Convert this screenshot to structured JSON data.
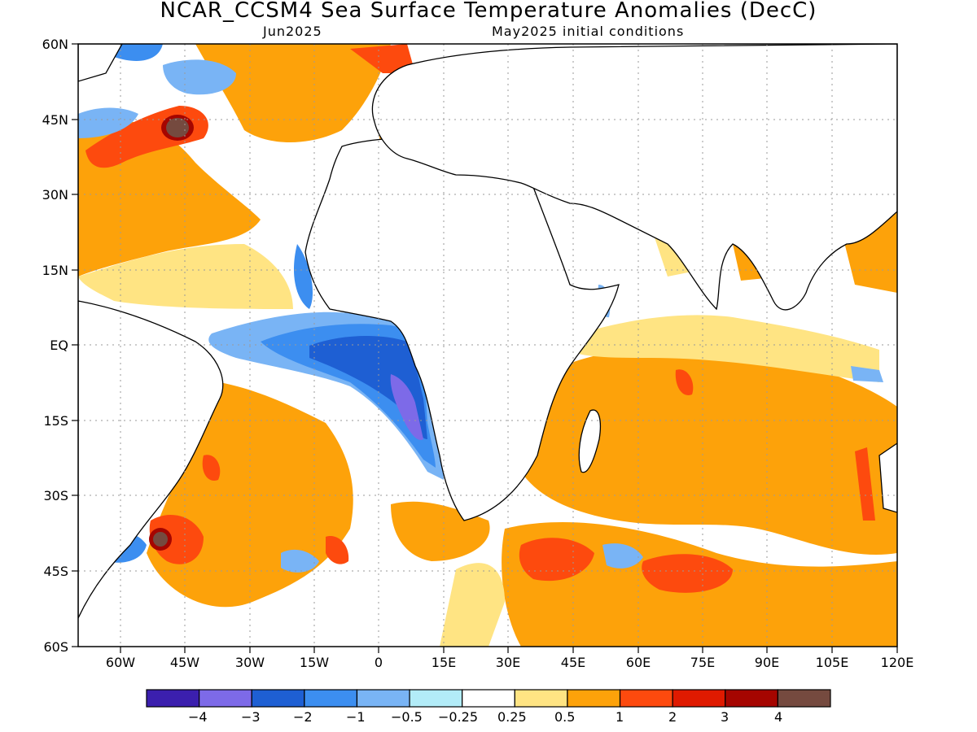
{
  "title": "NCAR_CCSM4 Sea Surface Temperature Anomalies (DecC)",
  "subtitle_left": "Jun2025",
  "subtitle_right": "May2025 initial conditions",
  "lat_labels": [
    "60N",
    "45N",
    "30N",
    "15N",
    "EQ",
    "15S",
    "30S",
    "45S",
    "60S"
  ],
  "lon_labels": [
    "60W",
    "45W",
    "30W",
    "15W",
    "0",
    "15E",
    "30E",
    "45E",
    "60E",
    "75E",
    "90E",
    "105E",
    "120E"
  ],
  "colorbar": {
    "colors": [
      "#3b1fae",
      "#7d6ae8",
      "#1e5fd3",
      "#3c8ef0",
      "#79b4f5",
      "#b2ecf8",
      "#ffffff",
      "#ffe483",
      "#fda20a",
      "#fd4a0e",
      "#df1a00",
      "#a50500",
      "#754a3f"
    ],
    "labels": [
      "-4",
      "-3",
      "-2",
      "-1",
      "-0.5",
      "-0.25",
      "0.25",
      "0.5",
      "1",
      "2",
      "3",
      "4"
    ]
  },
  "map_colors": {
    "land": "#ffffff",
    "coast": "#000000",
    "grid": "#9a9a9a"
  }
}
